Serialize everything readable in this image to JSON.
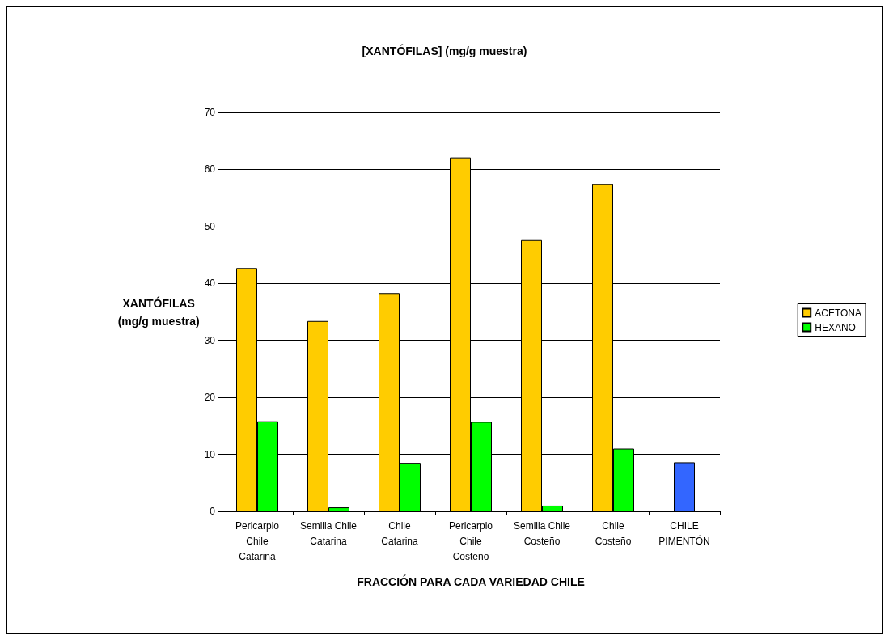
{
  "chart_data": {
    "type": "bar",
    "title": "[XANTÓFILAS] (mg/g muestra)",
    "xlabel": "FRACCIÓN PARA CADA VARIEDAD CHILE",
    "ylabel": "XANTÓFILAS\n(mg/g muestra)",
    "categories": [
      "Pericarpio\nChile\nCatarina",
      "Semilla Chile\nCatarina",
      "Chile\nCatarina",
      "Pericarpio\nChile\nCosteño",
      "Semilla Chile\nCosteño",
      "Chile\nCosteño",
      "CHILE\nPIMENTÓN"
    ],
    "series": [
      {
        "name": "ACETONA",
        "color": "#ffcc00",
        "values": [
          42.7,
          33.4,
          38.3,
          62.1,
          47.6,
          57.4,
          null
        ]
      },
      {
        "name": "HEXANO",
        "color": "#00ff00",
        "values": [
          15.8,
          0.7,
          8.5,
          15.7,
          1.0,
          11.0,
          null
        ]
      },
      {
        "color": "#3366ff",
        "values": [
          null,
          null,
          null,
          null,
          null,
          null,
          8.6
        ]
      }
    ],
    "ylim": [
      0,
      70
    ],
    "yticks": [
      0,
      10,
      20,
      30,
      40,
      50,
      60,
      70
    ],
    "grid": "y",
    "legend": "right"
  }
}
